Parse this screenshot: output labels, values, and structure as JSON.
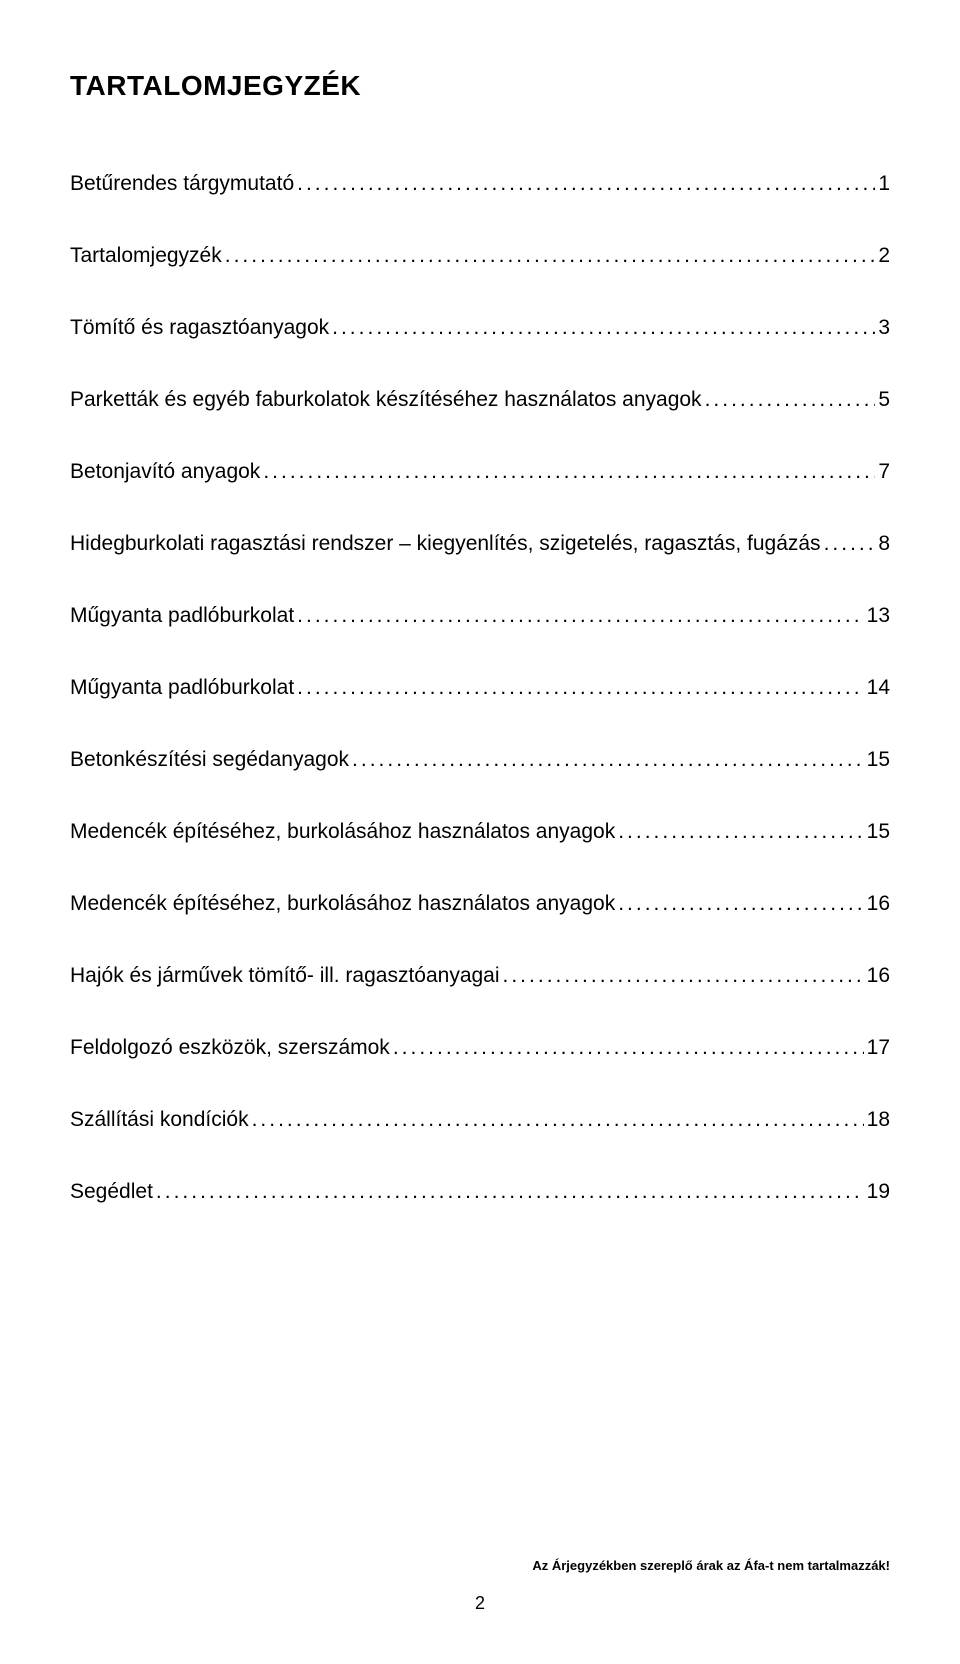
{
  "title": "TARTALOMJEGYZÉK",
  "toc": [
    {
      "label": "Betűrendes tárgymutató",
      "page": "1"
    },
    {
      "label": "Tartalomjegyzék",
      "page": "2"
    },
    {
      "label": "Tömítő és ragasztóanyagok",
      "page": "3"
    },
    {
      "label": "Parketták és egyéb faburkolatok készítéséhez használatos anyagok",
      "page": "5"
    },
    {
      "label": "Betonjavító anyagok",
      "page": "7"
    },
    {
      "label": "Hidegburkolati ragasztási rendszer – kiegyenlítés, szigetelés, ragasztás, fugázás",
      "page": "8"
    },
    {
      "label": "Műgyanta padlóburkolat",
      "page": "13"
    },
    {
      "label": "Műgyanta padlóburkolat",
      "page": "14"
    },
    {
      "label": "Betonkészítési segédanyagok",
      "page": "15"
    },
    {
      "label": "Medencék építéséhez, burkolásához használatos anyagok",
      "page": "15"
    },
    {
      "label": "Medencék építéséhez, burkolásához használatos anyagok",
      "page": "16"
    },
    {
      "label": "Hajók és járművek tömítő- ill. ragasztóanyagai",
      "page": "16"
    },
    {
      "label": "Feldolgozó eszközök, szerszámok",
      "page": "17"
    },
    {
      "label": "Szállítási kondíciók",
      "page": "18"
    },
    {
      "label": "Segédlet",
      "page": "19"
    }
  ],
  "footer_note": "Az Árjegyzékben szereplő árak az Áfa-t nem tartalmazzák!",
  "page_number": "2",
  "colors": {
    "background": "#ffffff",
    "text": "#000000"
  },
  "typography": {
    "title_fontsize": 28,
    "entry_fontsize": 21,
    "footer_fontsize": 13,
    "pagenum_fontsize": 18
  }
}
